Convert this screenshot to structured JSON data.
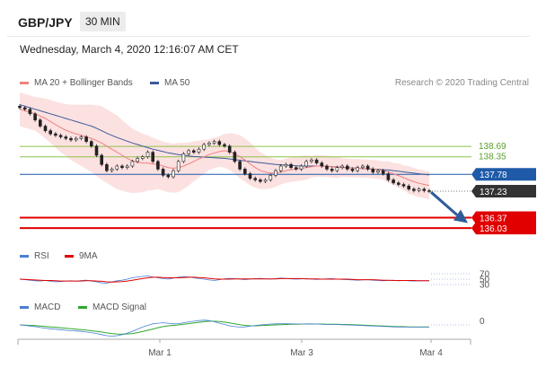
{
  "header": {
    "symbol": "GBP/JPY",
    "timeframe": "30 MIN",
    "datetime": "Wednesday, March 4, 2020 12:16:07 AM CET"
  },
  "legend_main": [
    {
      "label": "MA 20 + Bollinger Bands",
      "color": "#f08080"
    },
    {
      "label": "MA 50",
      "color": "#3b5b9a"
    }
  ],
  "credit": "Research © 2020 Trading Central",
  "legend_rsi": [
    {
      "label": "RSI",
      "color": "#4a7fd4"
    },
    {
      "label": "9MA",
      "color": "#e00000"
    }
  ],
  "legend_macd": [
    {
      "label": "MACD",
      "color": "#4a7fd4"
    },
    {
      "label": "MACD Signal",
      "color": "#2ea82e"
    }
  ],
  "colors": {
    "resistance": "#8bc34a",
    "pivot": "#1e5aa8",
    "support": "#e00000",
    "current": "#333333",
    "arrow": "#2f5b9a"
  },
  "chart_data": [
    {
      "type": "line",
      "name": "price",
      "x_ticks": [
        "Mar 1",
        "Mar 3",
        "Mar 4"
      ],
      "ylim": [
        135.8,
        140.3
      ],
      "levels": {
        "resistance": [
          "138.69",
          "138.35"
        ],
        "pivot": "137.78",
        "current": "137.23",
        "support": [
          "136.37",
          "136.03"
        ]
      },
      "close": [
        139.95,
        139.9,
        139.75,
        139.55,
        139.35,
        139.2,
        139.1,
        139.05,
        139.0,
        138.95,
        138.9,
        138.95,
        139.0,
        138.85,
        138.7,
        138.4,
        138.1,
        137.9,
        137.95,
        138.05,
        138.0,
        138.05,
        138.2,
        138.3,
        138.35,
        138.5,
        138.2,
        137.95,
        137.75,
        137.7,
        137.9,
        138.2,
        138.45,
        138.55,
        138.5,
        138.6,
        138.75,
        138.8,
        138.85,
        138.75,
        138.7,
        138.5,
        138.2,
        137.95,
        137.8,
        137.65,
        137.6,
        137.55,
        137.6,
        137.75,
        137.9,
        138.05,
        138.1,
        138.0,
        137.95,
        138.05,
        138.2,
        138.25,
        138.15,
        138.05,
        137.95,
        137.9,
        138.0,
        138.05,
        137.95,
        137.9,
        138.0,
        138.05,
        137.95,
        137.85,
        137.9,
        137.8,
        137.6,
        137.5,
        137.45,
        137.4,
        137.3,
        137.25,
        137.3,
        137.25,
        137.23
      ],
      "ma20": [
        139.9,
        139.85,
        139.8,
        139.75,
        139.68,
        139.6,
        139.5,
        139.4,
        139.3,
        139.22,
        139.15,
        139.1,
        139.05,
        139.0,
        138.95,
        138.88,
        138.8,
        138.7,
        138.6,
        138.5,
        138.4,
        138.3,
        138.22,
        138.18,
        138.15,
        138.15,
        138.12,
        138.1,
        138.05,
        138.0,
        137.98,
        138.0,
        138.05,
        138.12,
        138.2,
        138.28,
        138.35,
        138.42,
        138.48,
        138.52,
        138.55,
        138.52,
        138.45,
        138.35,
        138.25,
        138.12,
        138.0,
        137.9,
        137.85,
        137.82,
        137.82,
        137.85,
        137.9,
        137.93,
        137.96,
        137.98,
        138.0,
        138.03,
        138.05,
        138.05,
        138.04,
        138.02,
        138.01,
        138.0,
        137.99,
        137.98,
        137.98,
        137.97,
        137.96,
        137.95,
        137.93,
        137.9,
        137.86,
        137.8,
        137.74,
        137.67,
        137.6,
        137.54,
        137.49,
        137.45,
        137.42
      ],
      "ma50": [
        140.05,
        140.0,
        139.95,
        139.9,
        139.85,
        139.8,
        139.75,
        139.7,
        139.65,
        139.6,
        139.55,
        139.5,
        139.45,
        139.4,
        139.35,
        139.28,
        139.2,
        139.12,
        139.05,
        138.98,
        138.92,
        138.86,
        138.8,
        138.75,
        138.7,
        138.65,
        138.6,
        138.56,
        138.52,
        138.48,
        138.45,
        138.42,
        138.4,
        138.38,
        138.36,
        138.35,
        138.34,
        138.33,
        138.32,
        138.31,
        138.3,
        138.28,
        138.26,
        138.24,
        138.22,
        138.2,
        138.18,
        138.16,
        138.14,
        138.12,
        138.1,
        138.09,
        138.08,
        138.07,
        138.06,
        138.05,
        138.05,
        138.05,
        138.05,
        138.05,
        138.04,
        138.03,
        138.02,
        138.01,
        138.0,
        137.99,
        137.98,
        137.97,
        137.96,
        137.95,
        137.94,
        137.93,
        137.92,
        137.9,
        137.88,
        137.86,
        137.84,
        137.82,
        137.8,
        137.78,
        137.76
      ],
      "bb_width": [
        0.55,
        0.55,
        0.55,
        0.55,
        0.6,
        0.65,
        0.7,
        0.75,
        0.8,
        0.85,
        0.9,
        0.95,
        1.0,
        1.05,
        1.1,
        1.15,
        1.2,
        1.2,
        1.2,
        1.2,
        1.15,
        1.1,
        1.05,
        1.0,
        0.95,
        0.9,
        0.85,
        0.8,
        0.8,
        0.8,
        0.8,
        0.8,
        0.75,
        0.7,
        0.65,
        0.6,
        0.55,
        0.5,
        0.5,
        0.5,
        0.55,
        0.6,
        0.65,
        0.7,
        0.7,
        0.7,
        0.65,
        0.6,
        0.55,
        0.5,
        0.45,
        0.4,
        0.4,
        0.4,
        0.4,
        0.4,
        0.4,
        0.35,
        0.35,
        0.35,
        0.35,
        0.35,
        0.35,
        0.3,
        0.3,
        0.3,
        0.3,
        0.3,
        0.3,
        0.3,
        0.3,
        0.3,
        0.35,
        0.35,
        0.4,
        0.4,
        0.45,
        0.45,
        0.45,
        0.45,
        0.45
      ]
    },
    {
      "type": "line",
      "name": "rsi",
      "ylim": [
        0,
        100
      ],
      "y_ticks": [
        "70",
        "50",
        "30"
      ],
      "rsi": [
        50,
        48,
        46,
        44,
        43,
        45,
        42,
        40,
        41,
        43,
        44,
        42,
        45,
        46,
        43,
        40,
        36,
        35,
        40,
        44,
        46,
        50,
        55,
        58,
        60,
        62,
        58,
        55,
        52,
        50,
        54,
        57,
        60,
        58,
        55,
        52,
        50,
        47,
        45,
        48,
        51,
        53,
        52,
        50,
        48,
        50,
        52,
        53,
        51,
        50,
        52,
        54,
        53,
        51,
        50,
        51,
        52,
        50,
        49,
        50,
        51,
        52,
        50,
        49,
        48,
        47,
        46,
        47,
        48,
        46,
        45,
        44,
        45,
        46,
        44,
        45,
        44,
        43,
        44,
        44,
        44
      ],
      "ma9": [
        50,
        49,
        48,
        47,
        46,
        45,
        45,
        44,
        43,
        43,
        43,
        43,
        43,
        44,
        44,
        43,
        42,
        40,
        39,
        40,
        41,
        43,
        46,
        49,
        52,
        55,
        57,
        57,
        56,
        55,
        55,
        55,
        56,
        57,
        57,
        56,
        55,
        53,
        51,
        50,
        50,
        50,
        51,
        51,
        51,
        51,
        51,
        51,
        51,
        51,
        51,
        52,
        52,
        52,
        52,
        52,
        51,
        51,
        51,
        50,
        50,
        50,
        50,
        50,
        50,
        49,
        48,
        48,
        48,
        48,
        47,
        46,
        46,
        45,
        45,
        45,
        45,
        45,
        44,
        44,
        44
      ]
    },
    {
      "type": "line",
      "name": "macd",
      "y_ticks": [
        "0"
      ],
      "macd": [
        0,
        -0.02,
        -0.05,
        -0.08,
        -0.12,
        -0.15,
        -0.18,
        -0.2,
        -0.22,
        -0.25,
        -0.27,
        -0.28,
        -0.3,
        -0.33,
        -0.36,
        -0.4,
        -0.45,
        -0.5,
        -0.52,
        -0.5,
        -0.45,
        -0.38,
        -0.3,
        -0.2,
        -0.1,
        -0.02,
        0.05,
        0.08,
        0.1,
        0.08,
        0.05,
        0.06,
        0.1,
        0.14,
        0.17,
        0.2,
        0.22,
        0.2,
        0.15,
        0.08,
        0.02,
        -0.04,
        -0.08,
        -0.1,
        -0.09,
        -0.06,
        -0.03,
        0.0,
        0.02,
        0.04,
        0.05,
        0.06,
        0.06,
        0.05,
        0.04,
        0.04,
        0.05,
        0.05,
        0.04,
        0.03,
        0.02,
        0.02,
        0.02,
        0.01,
        0.0,
        -0.01,
        -0.02,
        -0.03,
        -0.04,
        -0.05,
        -0.06,
        -0.07,
        -0.08,
        -0.09,
        -0.1,
        -0.1,
        -0.1,
        -0.1,
        -0.1,
        -0.1,
        -0.1
      ],
      "signal": [
        0,
        -0.01,
        -0.02,
        -0.03,
        -0.05,
        -0.07,
        -0.09,
        -0.11,
        -0.13,
        -0.16,
        -0.18,
        -0.2,
        -0.22,
        -0.24,
        -0.27,
        -0.3,
        -0.33,
        -0.37,
        -0.4,
        -0.42,
        -0.43,
        -0.42,
        -0.4,
        -0.36,
        -0.31,
        -0.25,
        -0.19,
        -0.13,
        -0.08,
        -0.04,
        -0.02,
        0.0,
        0.03,
        0.06,
        0.09,
        0.12,
        0.15,
        0.17,
        0.17,
        0.16,
        0.13,
        0.09,
        0.05,
        0.01,
        -0.02,
        -0.04,
        -0.04,
        -0.03,
        -0.02,
        -0.01,
        0.0,
        0.01,
        0.02,
        0.03,
        0.03,
        0.04,
        0.04,
        0.04,
        0.04,
        0.04,
        0.03,
        0.03,
        0.03,
        0.02,
        0.02,
        0.01,
        0.0,
        -0.01,
        -0.02,
        -0.03,
        -0.04,
        -0.05,
        -0.06,
        -0.07,
        -0.08,
        -0.08,
        -0.09,
        -0.09,
        -0.09,
        -0.09,
        -0.09
      ]
    }
  ]
}
